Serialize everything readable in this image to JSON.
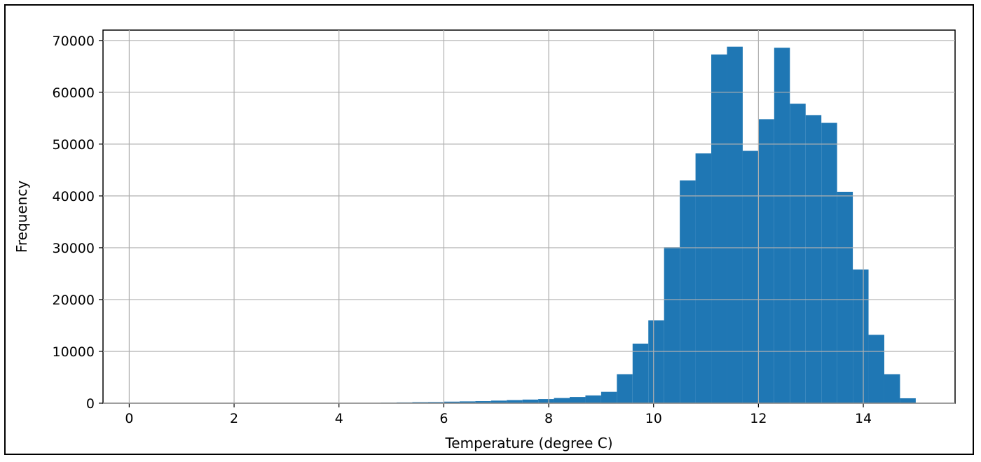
{
  "chart_data": {
    "type": "bar",
    "subtype": "histogram",
    "xlabel": "Temperature (degree C)",
    "ylabel": "Frequency",
    "xlim": [
      -0.5,
      15.75
    ],
    "ylim": [
      0,
      72000
    ],
    "xticks": [
      0,
      2,
      4,
      6,
      8,
      10,
      12,
      14
    ],
    "yticks": [
      0,
      10000,
      20000,
      30000,
      40000,
      50000,
      60000,
      70000
    ],
    "grid": true,
    "color": "#1f77b4",
    "bin_start": 0,
    "bin_width": 0.3,
    "values": [
      50,
      0,
      0,
      0,
      0,
      0,
      0,
      0,
      0,
      0,
      0,
      0,
      0,
      0,
      0,
      50,
      100,
      150,
      200,
      220,
      300,
      350,
      400,
      500,
      600,
      700,
      800,
      1000,
      1200,
      1500,
      2200,
      5600,
      11500,
      16000,
      30100,
      43000,
      48200,
      67300,
      68800,
      48700,
      54800,
      68600,
      57800,
      55600,
      54100,
      40800,
      25800,
      13200,
      5600,
      950
    ]
  }
}
